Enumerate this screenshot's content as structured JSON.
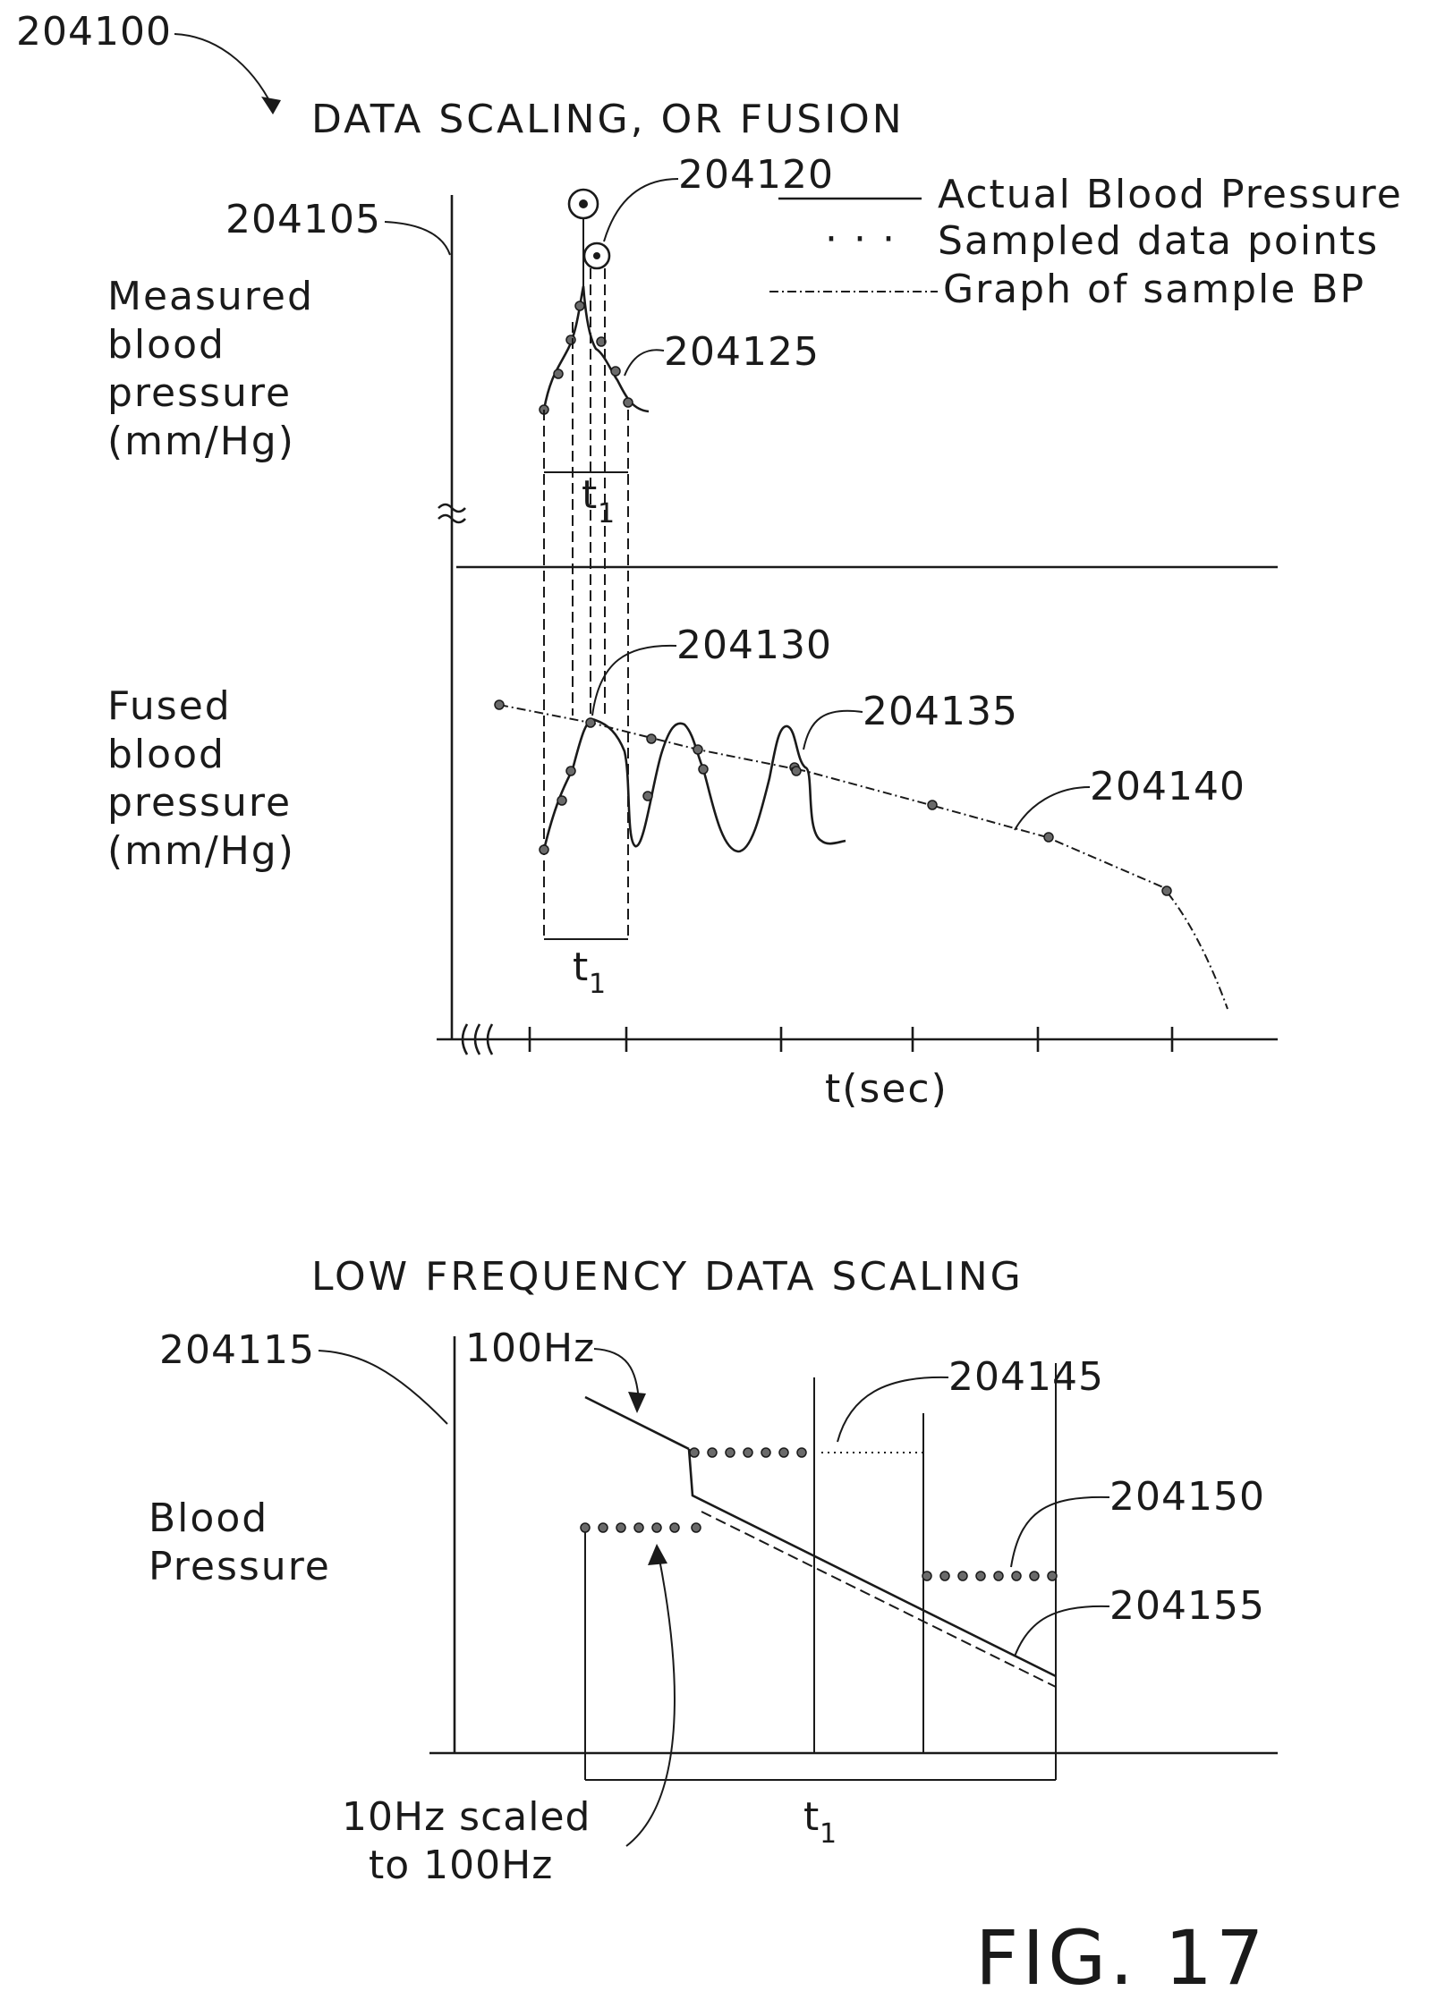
{
  "figure": {
    "ref_main": "204100",
    "title_top": "DATA SCALING, OR FUSION",
    "title_bottom": "LOW FREQUENCY DATA SCALING",
    "fig_label": "FIG. 17"
  },
  "top_plot": {
    "ref_axis": "204105",
    "ref_peak": "204120",
    "ref_curve": "204125",
    "ref_fused_start": "204130",
    "ref_fused_wave": "204135",
    "ref_sample_graph": "204140",
    "label_measured": [
      "Measured",
      "blood",
      "pressure",
      "(mm/Hg)"
    ],
    "label_fused": [
      "Fused",
      "blood",
      "pressure",
      "(mm/Hg)"
    ],
    "interval_label": "t",
    "interval_sub": "1",
    "x_axis_label": "t(sec)"
  },
  "legend": {
    "items": [
      {
        "name": "Actual Blood Pressure",
        "style": "solid"
      },
      {
        "name": "Sampled data points",
        "style": "dotted"
      },
      {
        "name": "Graph of sample BP",
        "style": "dash-dot"
      }
    ]
  },
  "bottom_plot": {
    "ref_axis": "204115",
    "ref_upper_samples": "204145",
    "ref_lower_samples": "204150",
    "ref_lines": "204155",
    "label_hz": "100Hz",
    "label_y": [
      "Blood",
      "Pressure"
    ],
    "label_scaled": [
      "10Hz scaled",
      "to 100Hz"
    ],
    "interval_label": "t",
    "interval_sub": "1"
  }
}
